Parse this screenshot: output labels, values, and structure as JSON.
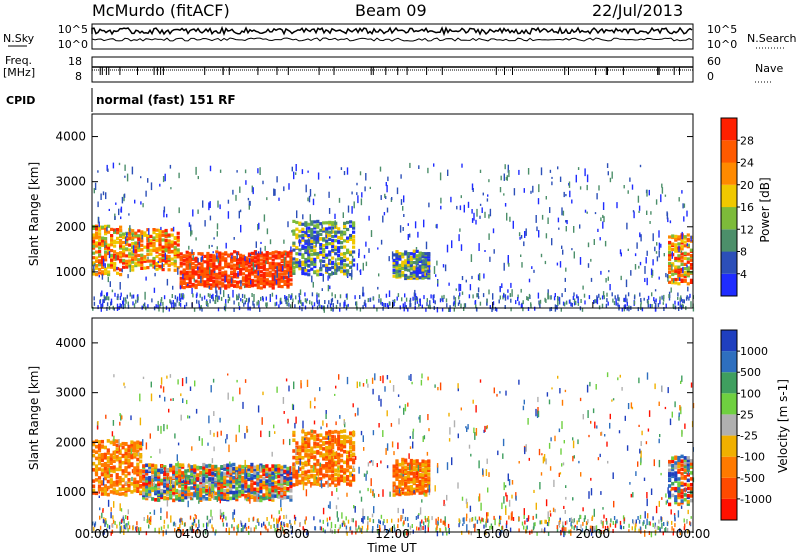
{
  "header": {
    "station": "McMurdo (fitACF)",
    "beam": "Beam 09",
    "date": "22/Jul/2013"
  },
  "noise_panel": {
    "left_label": "N.Sky",
    "right_label": "N.Search",
    "left_ticks": [
      "10^5",
      "10^0"
    ],
    "right_ticks": [
      "10^5",
      "10^0"
    ]
  },
  "freq_panel": {
    "left_label_1": "Freq.",
    "left_label_2": "[MHz]",
    "right_label": "Nave",
    "left_ticks": [
      "18",
      "8"
    ],
    "right_ticks": [
      "60",
      "0"
    ]
  },
  "cpid": {
    "label": "CPID",
    "value": "normal (fast) 151 RF"
  },
  "chart_data": [
    {
      "type": "heatmap",
      "name": "power",
      "ylabel": "Slant Range [km]",
      "yticks": [
        "1000",
        "2000",
        "3000",
        "4000"
      ],
      "ylim": [
        200,
        4500
      ],
      "xlim": [
        0,
        24
      ],
      "colorbar": {
        "label": "Power [dB]",
        "ticks": [
          "4",
          "8",
          "12",
          "16",
          "20",
          "24",
          "28"
        ],
        "colors": [
          "#1f2cff",
          "#2c4fb8",
          "#4c8f6a",
          "#7dbb3a",
          "#f0c800",
          "#ff8a00",
          "#ff5a00",
          "#ff2000"
        ]
      },
      "regions": [
        {
          "t0": 0.0,
          "t1": 1.2,
          "r0": 1000,
          "r1": 2100,
          "level": "high"
        },
        {
          "t0": 1.2,
          "t1": 3.5,
          "r0": 1100,
          "r1": 2000,
          "level": "high"
        },
        {
          "t0": 3.5,
          "t1": 8.0,
          "r0": 700,
          "r1": 1500,
          "level": "very_high"
        },
        {
          "t0": 8.0,
          "t1": 10.5,
          "r0": 1000,
          "r1": 2200,
          "level": "medium"
        },
        {
          "t0": 12.0,
          "t1": 13.5,
          "r0": 900,
          "r1": 1500,
          "level": "medium"
        },
        {
          "t0": 23.0,
          "t1": 24.0,
          "r0": 800,
          "r1": 1900,
          "level": "high"
        }
      ]
    },
    {
      "type": "heatmap",
      "name": "velocity",
      "ylabel": "Slant Range [km]",
      "yticks": [
        "1000",
        "2000",
        "3000",
        "4000"
      ],
      "ylim": [
        200,
        4500
      ],
      "xlim": [
        0,
        24
      ],
      "xlabel": "Time UT",
      "xticks": [
        "00:00",
        "04:00",
        "08:00",
        "12:00",
        "16:00",
        "20:00",
        "00:00"
      ],
      "colorbar": {
        "label": "Velocity [m s-1]",
        "ticks": [
          "1000",
          "500",
          "100",
          "25",
          "-25",
          "-100",
          "-500",
          "-1000"
        ],
        "colors": [
          "#1f3fbf",
          "#2e6fbf",
          "#3f9f5f",
          "#6fd040",
          "#b0b0b0",
          "#f0b000",
          "#ff7a00",
          "#ff4a00",
          "#ff1000"
        ]
      },
      "regions": [
        {
          "t0": 0.0,
          "t1": 2.0,
          "r0": 1000,
          "r1": 2100,
          "level": "toward"
        },
        {
          "t0": 2.0,
          "t1": 8.0,
          "r0": 900,
          "r1": 1600,
          "level": "mixed"
        },
        {
          "t0": 8.0,
          "t1": 10.5,
          "r0": 1200,
          "r1": 2300,
          "level": "toward"
        },
        {
          "t0": 12.0,
          "t1": 13.5,
          "r0": 1000,
          "r1": 1700,
          "level": "toward"
        },
        {
          "t0": 23.0,
          "t1": 24.0,
          "r0": 800,
          "r1": 1800,
          "level": "mixed"
        }
      ]
    }
  ]
}
